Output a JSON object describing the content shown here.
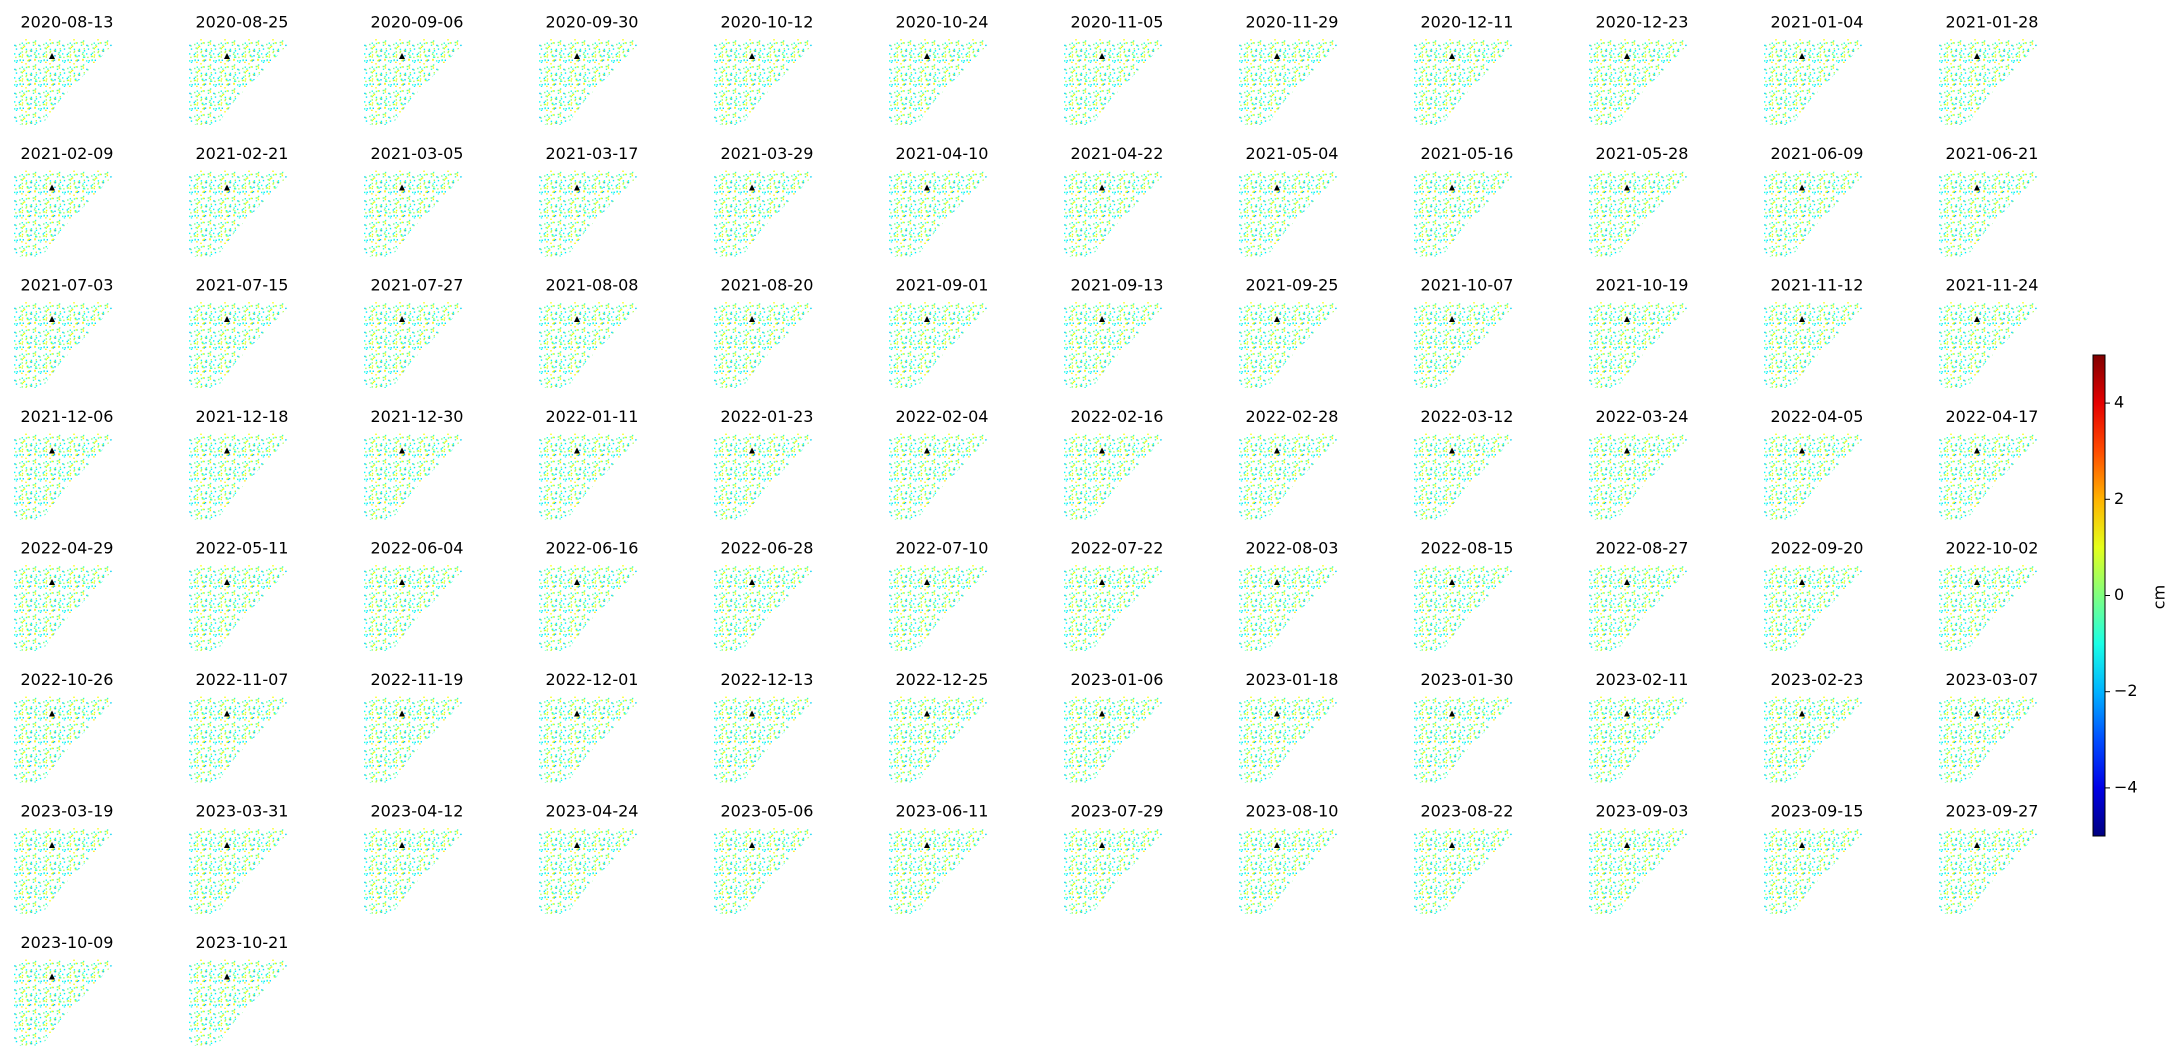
{
  "panels": {
    "titles": [
      "2020-08-13",
      "2020-08-25",
      "2020-09-06",
      "2020-09-30",
      "2020-10-12",
      "2020-10-24",
      "2020-11-05",
      "2020-11-29",
      "2020-12-11",
      "2020-12-23",
      "2021-01-04",
      "2021-01-28",
      "2021-02-09",
      "2021-02-21",
      "2021-03-05",
      "2021-03-17",
      "2021-03-29",
      "2021-04-10",
      "2021-04-22",
      "2021-05-04",
      "2021-05-16",
      "2021-05-28",
      "2021-06-09",
      "2021-06-21",
      "2021-07-03",
      "2021-07-15",
      "2021-07-27",
      "2021-08-08",
      "2021-08-20",
      "2021-09-01",
      "2021-09-13",
      "2021-09-25",
      "2021-10-07",
      "2021-10-19",
      "2021-11-12",
      "2021-11-24",
      "2021-12-06",
      "2021-12-18",
      "2021-12-30",
      "2022-01-11",
      "2022-01-23",
      "2022-02-04",
      "2022-02-16",
      "2022-02-28",
      "2022-03-12",
      "2022-03-24",
      "2022-04-05",
      "2022-04-17",
      "2022-04-29",
      "2022-05-11",
      "2022-06-04",
      "2022-06-16",
      "2022-06-28",
      "2022-07-10",
      "2022-07-22",
      "2022-08-03",
      "2022-08-15",
      "2022-08-27",
      "2022-09-20",
      "2022-10-02",
      "2022-10-26",
      "2022-11-07",
      "2022-11-19",
      "2022-12-01",
      "2022-12-13",
      "2022-12-25",
      "2023-01-06",
      "2023-01-18",
      "2023-01-30",
      "2023-02-11",
      "2023-02-23",
      "2023-03-07",
      "2023-03-19",
      "2023-03-31",
      "2023-04-12",
      "2023-04-24",
      "2023-05-06",
      "2023-06-11",
      "2023-07-29",
      "2023-08-10",
      "2023-08-22",
      "2023-09-03",
      "2023-09-15",
      "2023-09-27",
      "2023-10-09",
      "2023-10-21"
    ]
  },
  "colorbar": {
    "type": "colorbar",
    "colormap": "jet",
    "label": "cm",
    "ylim": [
      -5,
      5
    ],
    "yticks": [
      {
        "value": -4,
        "label": "−4"
      },
      {
        "value": -2,
        "label": "−2"
      },
      0,
      2,
      4
    ]
  }
}
